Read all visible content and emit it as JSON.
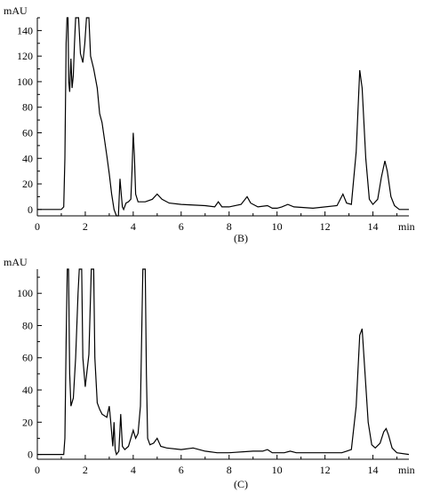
{
  "chart_data": [
    {
      "type": "line",
      "panel_label": "(B)",
      "ylabel": "mAU",
      "xlabel": "min",
      "xlim": [
        0,
        15.5
      ],
      "ylim": [
        -5,
        150
      ],
      "x_ticks": [
        0,
        2,
        4,
        6,
        8,
        10,
        12,
        14
      ],
      "y_ticks": [
        0,
        20,
        40,
        60,
        80,
        100,
        120,
        140
      ],
      "series": [
        {
          "points": [
            [
              0,
              0
            ],
            [
              1.0,
              0
            ],
            [
              1.1,
              2
            ],
            [
              1.15,
              40
            ],
            [
              1.2,
              130
            ],
            [
              1.24,
              150
            ],
            [
              1.28,
              150
            ],
            [
              1.31,
              100
            ],
            [
              1.35,
              92
            ],
            [
              1.4,
              118
            ],
            [
              1.45,
              95
            ],
            [
              1.5,
              105
            ],
            [
              1.55,
              130
            ],
            [
              1.6,
              150
            ],
            [
              1.72,
              150
            ],
            [
              1.8,
              122
            ],
            [
              1.9,
              115
            ],
            [
              1.98,
              130
            ],
            [
              2.05,
              150
            ],
            [
              2.15,
              150
            ],
            [
              2.22,
              120
            ],
            [
              2.35,
              110
            ],
            [
              2.5,
              95
            ],
            [
              2.6,
              75
            ],
            [
              2.7,
              68
            ],
            [
              2.8,
              55
            ],
            [
              2.9,
              42
            ],
            [
              3.0,
              28
            ],
            [
              3.1,
              12
            ],
            [
              3.2,
              0
            ],
            [
              3.3,
              -5
            ],
            [
              3.38,
              -5
            ],
            [
              3.45,
              24
            ],
            [
              3.5,
              12
            ],
            [
              3.55,
              2
            ],
            [
              3.6,
              0
            ],
            [
              3.7,
              5
            ],
            [
              3.8,
              6
            ],
            [
              3.9,
              8
            ],
            [
              3.95,
              30
            ],
            [
              4.0,
              60
            ],
            [
              4.05,
              42
            ],
            [
              4.1,
              12
            ],
            [
              4.2,
              6
            ],
            [
              4.5,
              6
            ],
            [
              4.8,
              8
            ],
            [
              5.0,
              12
            ],
            [
              5.2,
              8
            ],
            [
              5.5,
              5
            ],
            [
              6.0,
              4
            ],
            [
              7.0,
              3
            ],
            [
              7.4,
              2
            ],
            [
              7.55,
              6
            ],
            [
              7.7,
              2
            ],
            [
              8.0,
              2
            ],
            [
              8.5,
              4
            ],
            [
              8.75,
              10
            ],
            [
              8.9,
              5
            ],
            [
              9.2,
              2
            ],
            [
              9.6,
              3
            ],
            [
              9.8,
              1
            ],
            [
              10.0,
              1
            ],
            [
              10.2,
              2
            ],
            [
              10.45,
              4
            ],
            [
              10.7,
              2
            ],
            [
              11.5,
              1
            ],
            [
              12.5,
              3
            ],
            [
              12.75,
              12
            ],
            [
              12.9,
              5
            ],
            [
              13.1,
              4
            ],
            [
              13.3,
              45
            ],
            [
              13.45,
              109
            ],
            [
              13.55,
              95
            ],
            [
              13.7,
              40
            ],
            [
              13.85,
              8
            ],
            [
              14.0,
              4
            ],
            [
              14.2,
              8
            ],
            [
              14.35,
              25
            ],
            [
              14.5,
              38
            ],
            [
              14.6,
              30
            ],
            [
              14.75,
              10
            ],
            [
              14.9,
              3
            ],
            [
              15.1,
              0
            ],
            [
              15.5,
              0
            ]
          ]
        }
      ]
    },
    {
      "type": "line",
      "panel_label": "(C)",
      "ylabel": "mAU",
      "xlabel": "min",
      "xlim": [
        0,
        15.5
      ],
      "ylim": [
        -3,
        115
      ],
      "x_ticks": [
        0,
        2,
        4,
        6,
        8,
        10,
        12,
        14
      ],
      "y_ticks": [
        0,
        20,
        40,
        60,
        80,
        100
      ],
      "series": [
        {
          "points": [
            [
              0,
              0
            ],
            [
              1.1,
              0
            ],
            [
              1.15,
              10
            ],
            [
              1.2,
              70
            ],
            [
              1.25,
              115
            ],
            [
              1.3,
              115
            ],
            [
              1.35,
              50
            ],
            [
              1.4,
              30
            ],
            [
              1.5,
              35
            ],
            [
              1.6,
              60
            ],
            [
              1.7,
              100
            ],
            [
              1.75,
              115
            ],
            [
              1.85,
              115
            ],
            [
              1.9,
              60
            ],
            [
              2.0,
              42
            ],
            [
              2.15,
              62
            ],
            [
              2.25,
              115
            ],
            [
              2.35,
              115
            ],
            [
              2.4,
              60
            ],
            [
              2.5,
              32
            ],
            [
              2.6,
              28
            ],
            [
              2.7,
              25
            ],
            [
              2.8,
              24
            ],
            [
              2.9,
              23
            ],
            [
              3.0,
              30
            ],
            [
              3.05,
              22
            ],
            [
              3.15,
              5
            ],
            [
              3.2,
              20
            ],
            [
              3.25,
              3
            ],
            [
              3.3,
              0
            ],
            [
              3.4,
              2
            ],
            [
              3.48,
              25
            ],
            [
              3.55,
              5
            ],
            [
              3.65,
              3
            ],
            [
              3.8,
              5
            ],
            [
              4.0,
              15
            ],
            [
              4.1,
              10
            ],
            [
              4.2,
              13
            ],
            [
              4.3,
              30
            ],
            [
              4.4,
              115
            ],
            [
              4.5,
              115
            ],
            [
              4.55,
              50
            ],
            [
              4.6,
              10
            ],
            [
              4.7,
              6
            ],
            [
              4.85,
              7
            ],
            [
              5.0,
              10
            ],
            [
              5.15,
              5
            ],
            [
              5.4,
              4
            ],
            [
              6.0,
              3
            ],
            [
              6.5,
              4
            ],
            [
              7.0,
              2
            ],
            [
              7.5,
              1
            ],
            [
              8.0,
              1
            ],
            [
              9.0,
              2
            ],
            [
              9.4,
              2
            ],
            [
              9.6,
              3
            ],
            [
              9.8,
              1
            ],
            [
              10.3,
              1
            ],
            [
              10.55,
              2
            ],
            [
              10.8,
              1
            ],
            [
              12.0,
              1
            ],
            [
              12.7,
              1
            ],
            [
              12.9,
              2
            ],
            [
              13.1,
              3
            ],
            [
              13.3,
              30
            ],
            [
              13.45,
              74
            ],
            [
              13.55,
              78
            ],
            [
              13.65,
              55
            ],
            [
              13.8,
              20
            ],
            [
              13.95,
              6
            ],
            [
              14.1,
              4
            ],
            [
              14.3,
              7
            ],
            [
              14.45,
              14
            ],
            [
              14.55,
              16
            ],
            [
              14.65,
              12
            ],
            [
              14.8,
              4
            ],
            [
              15.0,
              1
            ],
            [
              15.5,
              0
            ]
          ]
        }
      ]
    }
  ]
}
